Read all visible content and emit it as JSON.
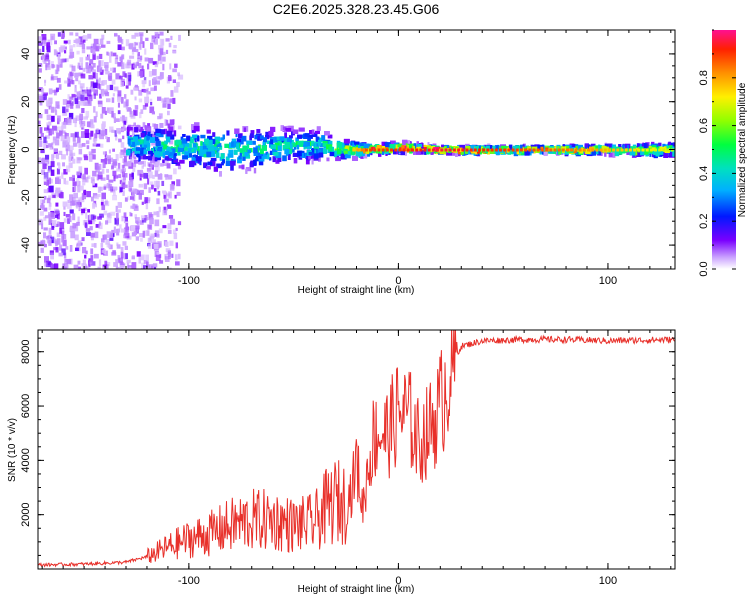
{
  "title": "C2E6.2025.328.23.45.G06",
  "chart_data": [
    {
      "type": "heatmap",
      "title": "C2E6.2025.328.23.45.G06",
      "xlabel": "Height of straight line (km)",
      "ylabel": "Frequency (Hz)",
      "xlim": [
        -172,
        132
      ],
      "ylim": [
        -50,
        50
      ],
      "x_ticks": [
        -100,
        0,
        100
      ],
      "y_ticks": [
        -40,
        -20,
        0,
        20,
        40
      ],
      "description_of_field": "Normalized spectral amplitude vs frequency; broad scattered power above and below zero Hz at low heights narrowing into a single strong line near 0 Hz above about -20 km.",
      "ridge": {
        "x": [
          -120,
          -100,
          -80,
          -60,
          -40,
          -25,
          -15,
          0,
          20,
          50,
          80,
          110,
          132
        ],
        "center_hz": [
          2,
          1,
          0,
          1,
          2,
          0,
          0,
          1,
          0,
          0,
          0,
          0,
          0
        ],
        "halfwidth_hz": [
          6,
          7,
          7,
          6,
          5,
          3,
          1.5,
          1.5,
          1,
          1,
          1.2,
          1.5,
          2
        ],
        "amplitude": [
          0.45,
          0.5,
          0.5,
          0.5,
          0.5,
          0.7,
          0.9,
          0.9,
          0.95,
          0.9,
          0.85,
          0.75,
          0.65
        ]
      },
      "colorbar": {
        "label": "Normalized spectral amplitude",
        "range": [
          0.0,
          1.0
        ],
        "ticks": [
          0.0,
          0.2,
          0.4,
          0.6,
          0.8
        ]
      }
    },
    {
      "type": "line",
      "xlabel": "Height of straight line (km)",
      "ylabel": "SNR (10 * v/v)",
      "xlim": [
        -172,
        132
      ],
      "ylim": [
        0,
        8800
      ],
      "x_ticks": [
        -100,
        0,
        100
      ],
      "y_ticks": [
        2000,
        4000,
        6000,
        8000
      ],
      "series": [
        {
          "name": "SNR",
          "color": "#e8302a",
          "x": [
            -172,
            -150,
            -130,
            -120,
            -110,
            -100,
            -90,
            -80,
            -70,
            -60,
            -50,
            -40,
            -35,
            -30,
            -25,
            -22,
            -20,
            -17,
            -15,
            -12,
            -10,
            -5,
            0,
            5,
            10,
            15,
            20,
            25,
            30,
            35,
            40,
            60,
            80,
            100,
            132
          ],
          "y": [
            150,
            180,
            250,
            450,
            800,
            1100,
            1300,
            1600,
            1800,
            1800,
            1600,
            1700,
            2200,
            2500,
            2400,
            3000,
            4000,
            2200,
            3500,
            4800,
            5000,
            5000,
            5800,
            5600,
            4600,
            5200,
            6000,
            7500,
            8200,
            8300,
            8400,
            8450,
            8450,
            8400,
            8450
          ]
        }
      ]
    }
  ]
}
